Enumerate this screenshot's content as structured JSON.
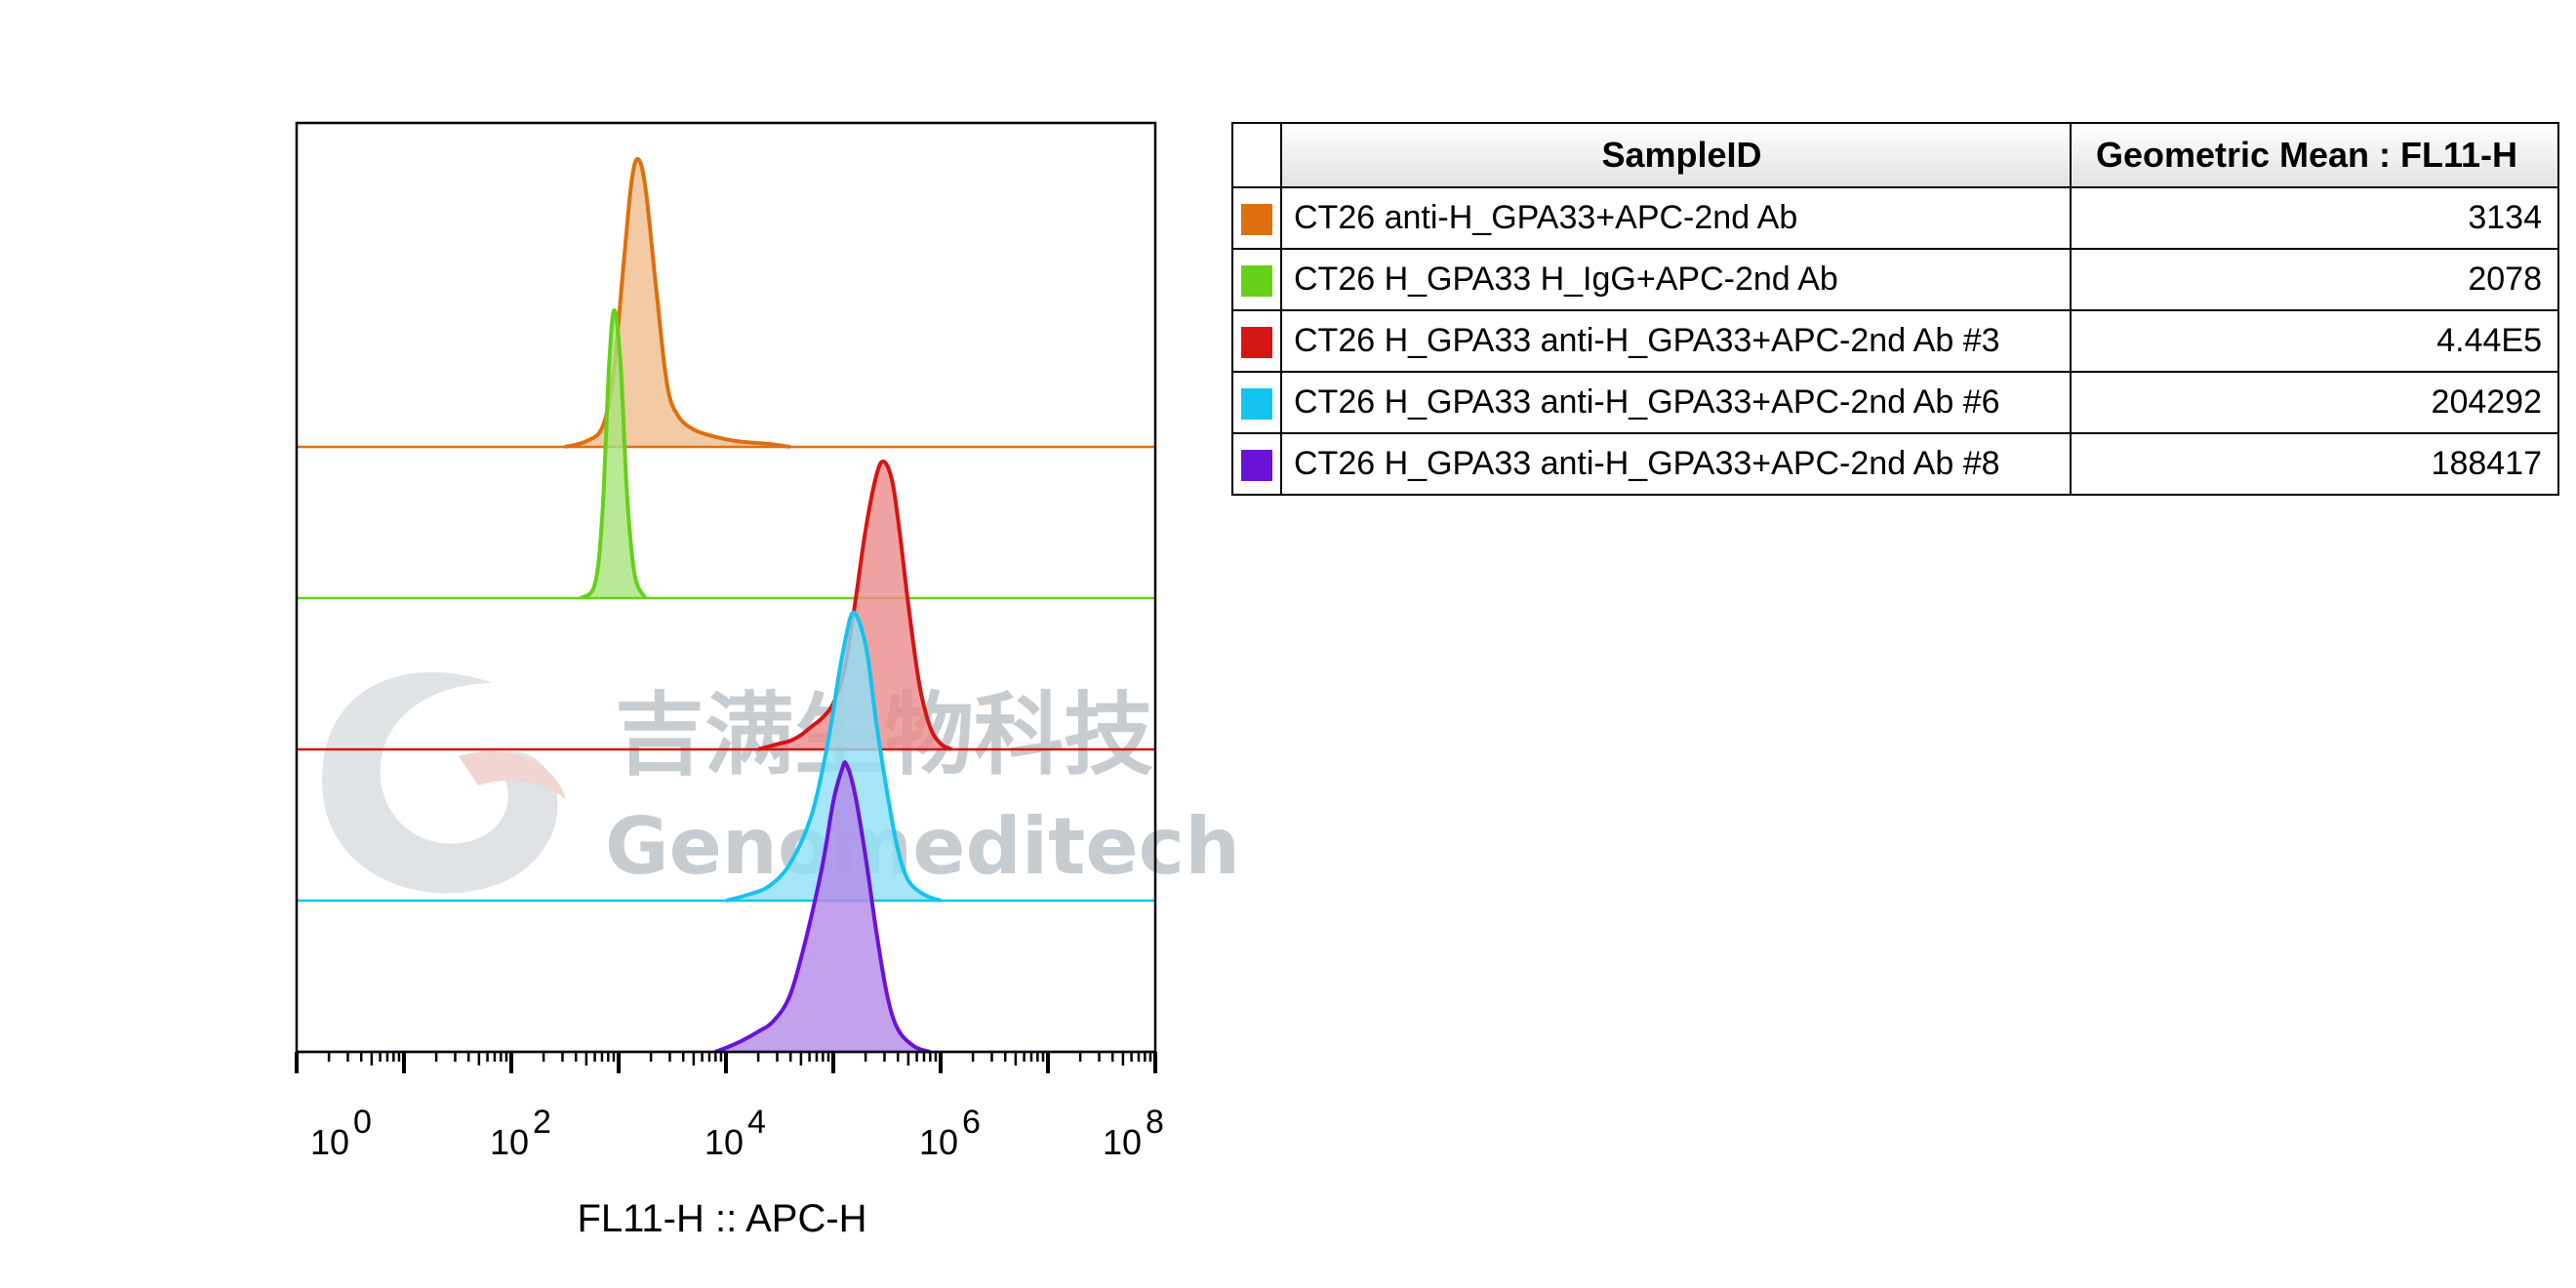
{
  "colors": {
    "axis": "#000000",
    "watermark": "#9aa3aa"
  },
  "watermark": {
    "cn": "吉满生物科技",
    "en": "Genomeditech"
  },
  "table": {
    "header_sample": "SampleID",
    "header_value": "Geometric Mean : FL11-H"
  },
  "chart_data": {
    "type": "histogram-overlay",
    "xlabel": "FL11-H :: APC-H",
    "x_scale": "log",
    "xlim": [
      1,
      100000000
    ],
    "x_ticks": [
      {
        "base": "10",
        "exp": "0",
        "value": 1
      },
      {
        "base": "10",
        "exp": "2",
        "value": 100
      },
      {
        "base": "10",
        "exp": "4",
        "value": 10000
      },
      {
        "base": "10",
        "exp": "6",
        "value": 1000000
      },
      {
        "base": "10",
        "exp": "8",
        "value": 100000000
      }
    ],
    "series": [
      {
        "name": "CT26 anti-H_GPA33+APC-2nd Ab",
        "geometric_mean": "3134",
        "color": "#de6f0e",
        "fill": "#f0bd8d",
        "profile": [
          [
            2.5,
            0
          ],
          [
            2.7,
            0.02
          ],
          [
            2.85,
            0.07
          ],
          [
            2.95,
            0.25
          ],
          [
            3.05,
            0.65
          ],
          [
            3.12,
            0.92
          ],
          [
            3.18,
            1.0
          ],
          [
            3.25,
            0.9
          ],
          [
            3.35,
            0.55
          ],
          [
            3.45,
            0.22
          ],
          [
            3.55,
            0.11
          ],
          [
            3.7,
            0.06
          ],
          [
            3.9,
            0.035
          ],
          [
            4.1,
            0.02
          ],
          [
            4.4,
            0.01
          ],
          [
            4.6,
            0
          ]
        ]
      },
      {
        "name": "CT26 H_GPA33 H_IgG+APC-2nd Ab",
        "geometric_mean": "2078",
        "color": "#66d01a",
        "fill": "#a8e47a",
        "profile": [
          [
            2.65,
            0
          ],
          [
            2.78,
            0.05
          ],
          [
            2.85,
            0.3
          ],
          [
            2.91,
            0.8
          ],
          [
            2.96,
            1.0
          ],
          [
            3.02,
            0.8
          ],
          [
            3.08,
            0.35
          ],
          [
            3.15,
            0.08
          ],
          [
            3.25,
            0
          ]
        ]
      },
      {
        "name": "CT26 H_GPA33 anti-H_GPA33+APC-2nd Ab #3",
        "geometric_mean": "4.44E5",
        "color": "#d41515",
        "fill": "#ec8a8a",
        "profile": [
          [
            4.3,
            0
          ],
          [
            4.5,
            0.02
          ],
          [
            4.6,
            0.03
          ],
          [
            4.7,
            0.05
          ],
          [
            4.8,
            0.08
          ],
          [
            4.9,
            0.11
          ],
          [
            5.0,
            0.16
          ],
          [
            5.1,
            0.27
          ],
          [
            5.2,
            0.5
          ],
          [
            5.3,
            0.76
          ],
          [
            5.4,
            0.95
          ],
          [
            5.47,
            1.0
          ],
          [
            5.55,
            0.93
          ],
          [
            5.62,
            0.75
          ],
          [
            5.7,
            0.5
          ],
          [
            5.8,
            0.23
          ],
          [
            5.9,
            0.08
          ],
          [
            6.0,
            0.02
          ],
          [
            6.1,
            0
          ]
        ]
      },
      {
        "name": "CT26 H_GPA33 anti-H_GPA33+APC-2nd Ab #6",
        "geometric_mean": "204292",
        "color": "#14c4ee",
        "fill": "#8ee0f7",
        "profile": [
          [
            4.0,
            0
          ],
          [
            4.2,
            0.02
          ],
          [
            4.4,
            0.05
          ],
          [
            4.6,
            0.13
          ],
          [
            4.8,
            0.3
          ],
          [
            4.95,
            0.55
          ],
          [
            5.05,
            0.78
          ],
          [
            5.12,
            0.92
          ],
          [
            5.18,
            1.0
          ],
          [
            5.25,
            0.96
          ],
          [
            5.32,
            0.85
          ],
          [
            5.4,
            0.62
          ],
          [
            5.5,
            0.38
          ],
          [
            5.6,
            0.18
          ],
          [
            5.7,
            0.07
          ],
          [
            5.85,
            0.02
          ],
          [
            6.0,
            0
          ]
        ]
      },
      {
        "name": "CT26 H_GPA33 anti-H_GPA33+APC-2nd Ab #8",
        "geometric_mean": "188417",
        "color": "#6a12d8",
        "fill": "#b48ae8",
        "profile": [
          [
            3.9,
            0
          ],
          [
            4.1,
            0.03
          ],
          [
            4.3,
            0.07
          ],
          [
            4.45,
            0.11
          ],
          [
            4.6,
            0.2
          ],
          [
            4.75,
            0.4
          ],
          [
            4.9,
            0.65
          ],
          [
            5.0,
            0.87
          ],
          [
            5.08,
            0.98
          ],
          [
            5.12,
            1.0
          ],
          [
            5.2,
            0.9
          ],
          [
            5.3,
            0.68
          ],
          [
            5.4,
            0.42
          ],
          [
            5.5,
            0.2
          ],
          [
            5.6,
            0.08
          ],
          [
            5.75,
            0.02
          ],
          [
            5.9,
            0
          ]
        ]
      }
    ]
  }
}
